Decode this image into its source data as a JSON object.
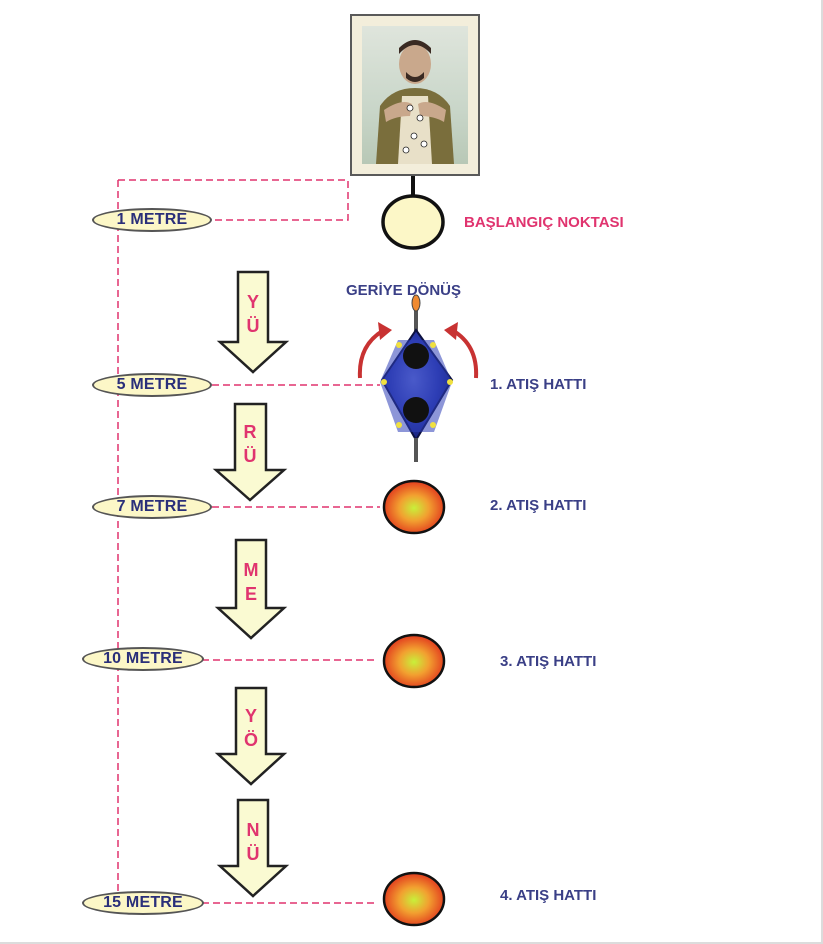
{
  "distances": {
    "m1": "1 METRE",
    "m5": "5 METRE",
    "m7": "7 METRE",
    "m10": "10 METRE",
    "m15": "15 METRE"
  },
  "labels": {
    "start": "BAŞLANGIÇ NOKTASI",
    "turn_back": "GERİYE DÖNÜŞ",
    "line1": "1. ATIŞ HATTI",
    "line2": "2. ATIŞ HATTI",
    "line3": "3. ATIŞ HATTI",
    "line4": "4. ATIŞ HATTI"
  },
  "arrow_letters": [
    [
      "Y",
      "Ü"
    ],
    [
      "R",
      "Ü"
    ],
    [
      "M",
      "E"
    ],
    [
      "Y",
      "Ö"
    ],
    [
      "N",
      "Ü"
    ]
  ],
  "colors": {
    "pill_fill": "#fcf7c7",
    "arrow_fill": "#fafad2",
    "dash_line": "#e0346f",
    "label_blue": "#3a3f86",
    "label_pink": "#e0346f",
    "circle_center": "#c8f03a",
    "circle_edge": "#e8361c"
  },
  "icons": {
    "target": "shooter-target-photo-icon",
    "shooter": "shooter-top-view-icon",
    "turn_arrows": "curved-turn-arrows-icon"
  }
}
